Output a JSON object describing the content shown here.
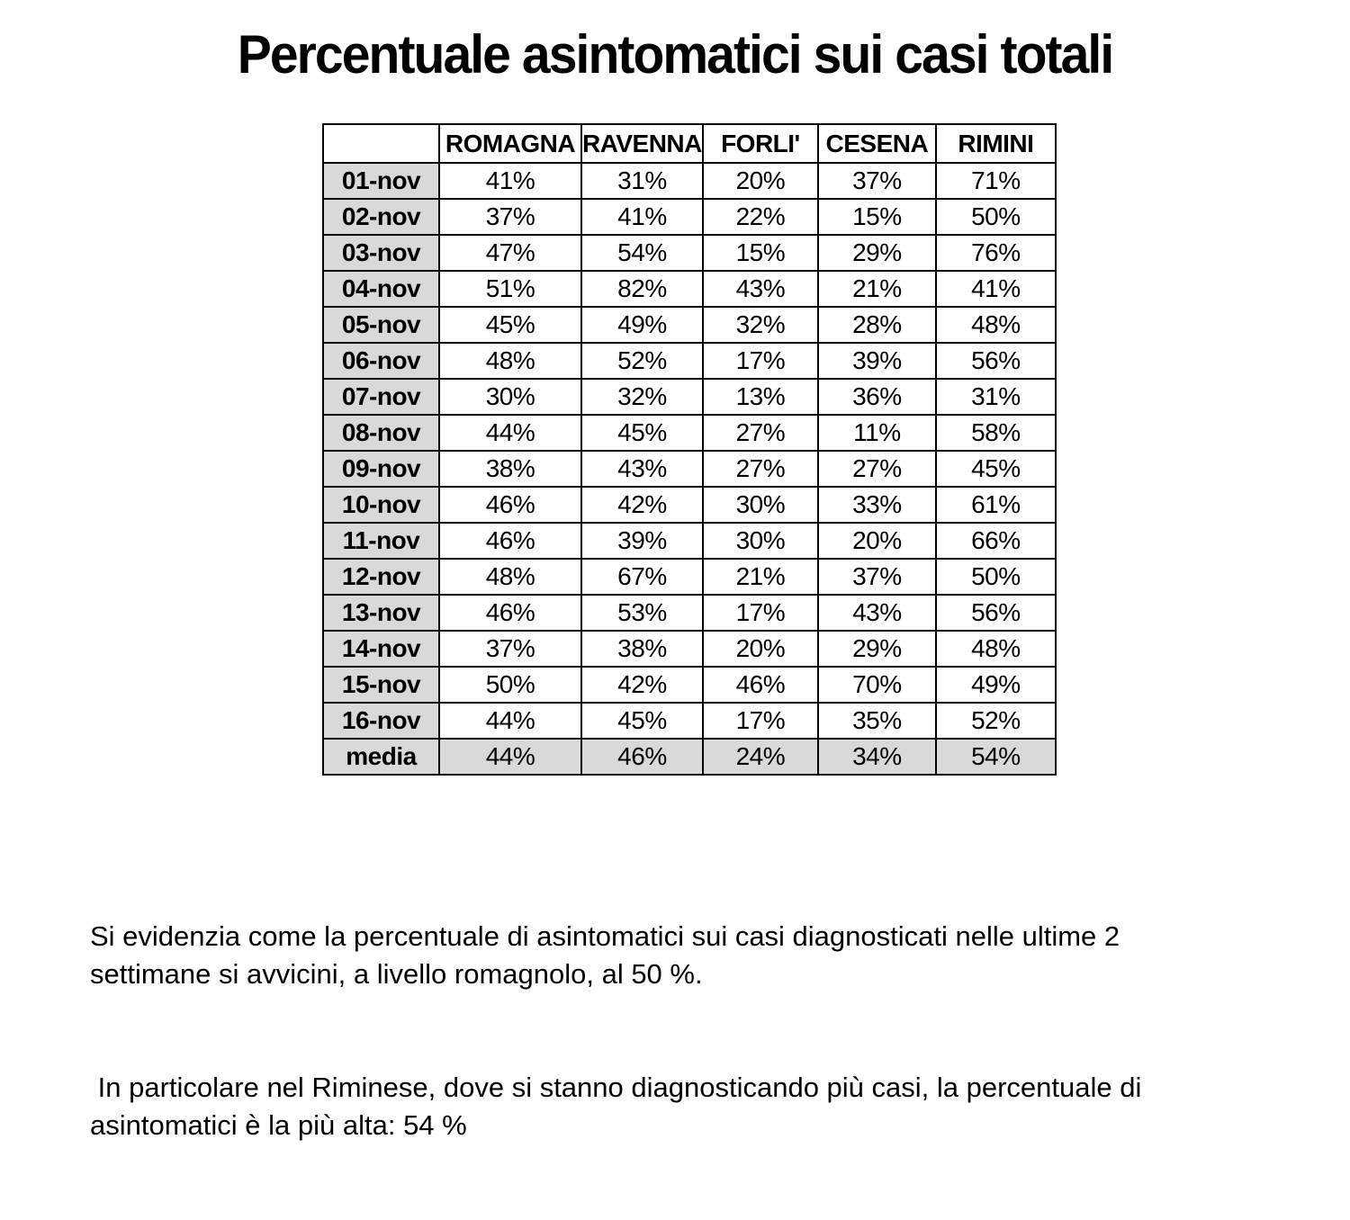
{
  "title": "Percentuale asintomatici sui casi totali",
  "table": {
    "corner_label": "",
    "columns": [
      "ROMAGNA",
      "RAVENNA",
      "FORLI'",
      "CESENA",
      "RIMINI"
    ],
    "rows": [
      {
        "label": "01-nov",
        "values": [
          "41%",
          "31%",
          "20%",
          "37%",
          "71%"
        ]
      },
      {
        "label": "02-nov",
        "values": [
          "37%",
          "41%",
          "22%",
          "15%",
          "50%"
        ]
      },
      {
        "label": "03-nov",
        "values": [
          "47%",
          "54%",
          "15%",
          "29%",
          "76%"
        ]
      },
      {
        "label": "04-nov",
        "values": [
          "51%",
          "82%",
          "43%",
          "21%",
          "41%"
        ]
      },
      {
        "label": "05-nov",
        "values": [
          "45%",
          "49%",
          "32%",
          "28%",
          "48%"
        ]
      },
      {
        "label": "06-nov",
        "values": [
          "48%",
          "52%",
          "17%",
          "39%",
          "56%"
        ]
      },
      {
        "label": "07-nov",
        "values": [
          "30%",
          "32%",
          "13%",
          "36%",
          "31%"
        ]
      },
      {
        "label": "08-nov",
        "values": [
          "44%",
          "45%",
          "27%",
          "11%",
          "58%"
        ]
      },
      {
        "label": "09-nov",
        "values": [
          "38%",
          "43%",
          "27%",
          "27%",
          "45%"
        ]
      },
      {
        "label": "10-nov",
        "values": [
          "46%",
          "42%",
          "30%",
          "33%",
          "61%"
        ]
      },
      {
        "label": "11-nov",
        "values": [
          "46%",
          "39%",
          "30%",
          "20%",
          "66%"
        ]
      },
      {
        "label": "12-nov",
        "values": [
          "48%",
          "67%",
          "21%",
          "37%",
          "50%"
        ]
      },
      {
        "label": "13-nov",
        "values": [
          "46%",
          "53%",
          "17%",
          "43%",
          "56%"
        ]
      },
      {
        "label": "14-nov",
        "values": [
          "37%",
          "38%",
          "20%",
          "29%",
          "48%"
        ]
      },
      {
        "label": "15-nov",
        "values": [
          "50%",
          "42%",
          "46%",
          "70%",
          "49%"
        ]
      },
      {
        "label": "16-nov",
        "values": [
          "44%",
          "45%",
          "17%",
          "35%",
          "52%"
        ]
      },
      {
        "label": "media",
        "values": [
          "44%",
          "46%",
          "24%",
          "34%",
          "54%"
        ],
        "summary": true
      }
    ]
  },
  "notes": {
    "paragraph1": "Si evidenzia come la percentuale di asintomatici sui casi diagnosticati nelle ultime 2\nsettimane si avvicini, a livello romagnolo, al 50 %.",
    "paragraph2": " In particolare nel Riminese, dove si stanno diagnosticando più casi, la percentuale di\nasintomatici è la più alta: 54 %"
  },
  "colors": {
    "background": "#ffffff",
    "text": "#000000",
    "border": "#000000",
    "label_column_bg": "#d9d9d9",
    "summary_row_bg": "#d9d9d9"
  }
}
